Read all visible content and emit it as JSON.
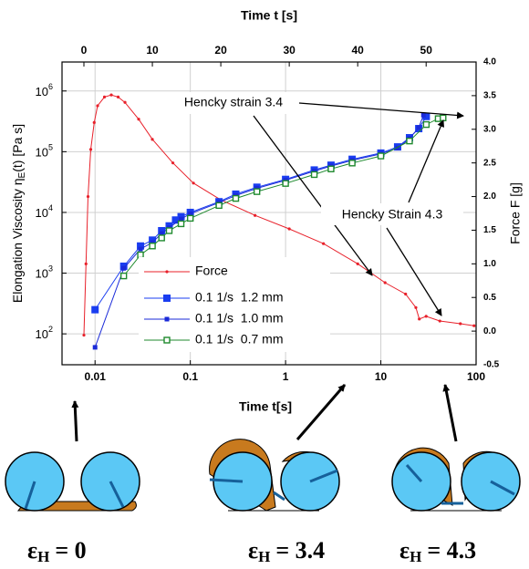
{
  "chart_data": {
    "type": "line",
    "xlabel": "Time t[s]",
    "x2label": "Time t [s]",
    "ylabel": "Elongation Viscosity η",
    "ylabel_subscript": "E",
    "ylabel_suffix": "(t) [Pa s]",
    "y2label": "Force F [g]",
    "xscale": "log",
    "yscale": "log",
    "grid": true,
    "xlim": [
      0.0045,
      100
    ],
    "xticks": [
      0.01,
      0.1,
      1,
      10,
      100
    ],
    "x2lim": [
      -3.2,
      57.3
    ],
    "x2ticks": [
      0,
      10,
      20,
      30,
      40,
      50
    ],
    "ylim": [
      31,
      3000000
    ],
    "yticks": [
      {
        "value": 100,
        "label": "10",
        "exponent": "2"
      },
      {
        "value": 1000,
        "label": "10",
        "exponent": "3"
      },
      {
        "value": 10000,
        "label": "10",
        "exponent": "4"
      },
      {
        "value": 100000,
        "label": "10",
        "exponent": "5"
      },
      {
        "value": 1000000,
        "label": "10",
        "exponent": "6"
      }
    ],
    "y2lim": [
      -0.5,
      4.0
    ],
    "y2ticks": [
      -0.5,
      {
        "value": 0,
        "label": "0.0"
      },
      0.5,
      {
        "value": 1,
        "label": "1.0"
      },
      1.5,
      {
        "value": 2,
        "label": "2.0"
      },
      2.5,
      {
        "value": 3,
        "label": "3.0"
      },
      3.5,
      {
        "value": 4,
        "label": "4.0"
      }
    ],
    "series": [
      {
        "name": "Force",
        "color": "#e8202a",
        "axis": "y2",
        "xaxis": "x2",
        "marker": "dot",
        "x": [
          0,
          0.3,
          0.6,
          1,
          1.5,
          2,
          3,
          4,
          5,
          6,
          8,
          10,
          13,
          16,
          20,
          25,
          30,
          35,
          40,
          44,
          47,
          48.5,
          49,
          50,
          52,
          55,
          57
        ],
        "values": [
          -0.06,
          1.0,
          2.0,
          2.7,
          3.1,
          3.35,
          3.48,
          3.51,
          3.48,
          3.4,
          3.15,
          2.85,
          2.5,
          2.2,
          1.95,
          1.72,
          1.52,
          1.3,
          1.0,
          0.72,
          0.55,
          0.35,
          0.18,
          0.22,
          0.15,
          0.11,
          0.08
        ]
      },
      {
        "name": "0.1 1/s  1.2 mm",
        "color": "#1a3df0",
        "marker": "square-big",
        "x": [
          0.01,
          0.02,
          0.03,
          0.04,
          0.05,
          0.06,
          0.07,
          0.08,
          0.1,
          0.2,
          0.3,
          0.5,
          1,
          2,
          3,
          5,
          10,
          15,
          20,
          25,
          30
        ],
        "values": [
          250,
          1300,
          2800,
          3500,
          5000,
          6000,
          7500,
          8500,
          10000,
          15000,
          20000,
          26000,
          35000,
          50000,
          60000,
          75000,
          95000,
          120000,
          170000,
          240000,
          380000
        ]
      },
      {
        "name": "0.1 1/s  1.0 mm",
        "color": "#1a2ad8",
        "marker": "square-small",
        "x": [
          0.01,
          0.02,
          0.03,
          0.04,
          0.05,
          0.06,
          0.08,
          0.1,
          0.2,
          0.3,
          0.5,
          1,
          2,
          3,
          5,
          10,
          15,
          20,
          25,
          28
        ],
        "values": [
          60,
          1200,
          2500,
          3200,
          4500,
          5600,
          7800,
          9500,
          14500,
          19000,
          25000,
          34000,
          48000,
          58000,
          72000,
          92000,
          115000,
          165000,
          250000,
          400000
        ]
      },
      {
        "name": "0.1 1/s  0.7 mm",
        "color": "#1f8a2e",
        "marker": "square-open",
        "x": [
          0.02,
          0.03,
          0.04,
          0.05,
          0.06,
          0.08,
          0.1,
          0.2,
          0.3,
          0.5,
          1,
          2,
          3,
          5,
          10,
          20,
          30,
          40,
          45
        ],
        "values": [
          900,
          2000,
          2800,
          3800,
          5000,
          6500,
          8000,
          13000,
          17000,
          22000,
          30000,
          42000,
          52000,
          65000,
          85000,
          150000,
          280000,
          350000,
          360000
        ]
      }
    ],
    "annotations": [
      "Hencky strain 3.4",
      "Hencky Strain 4.3"
    ],
    "strain_labels": [
      {
        "symbol": "ε",
        "subscript": "H",
        "text": "= 0"
      },
      {
        "symbol": "ε",
        "subscript": "H",
        "text": "= 3.4"
      },
      {
        "symbol": "ε",
        "subscript": "H",
        "text": "= 4.3"
      }
    ]
  }
}
